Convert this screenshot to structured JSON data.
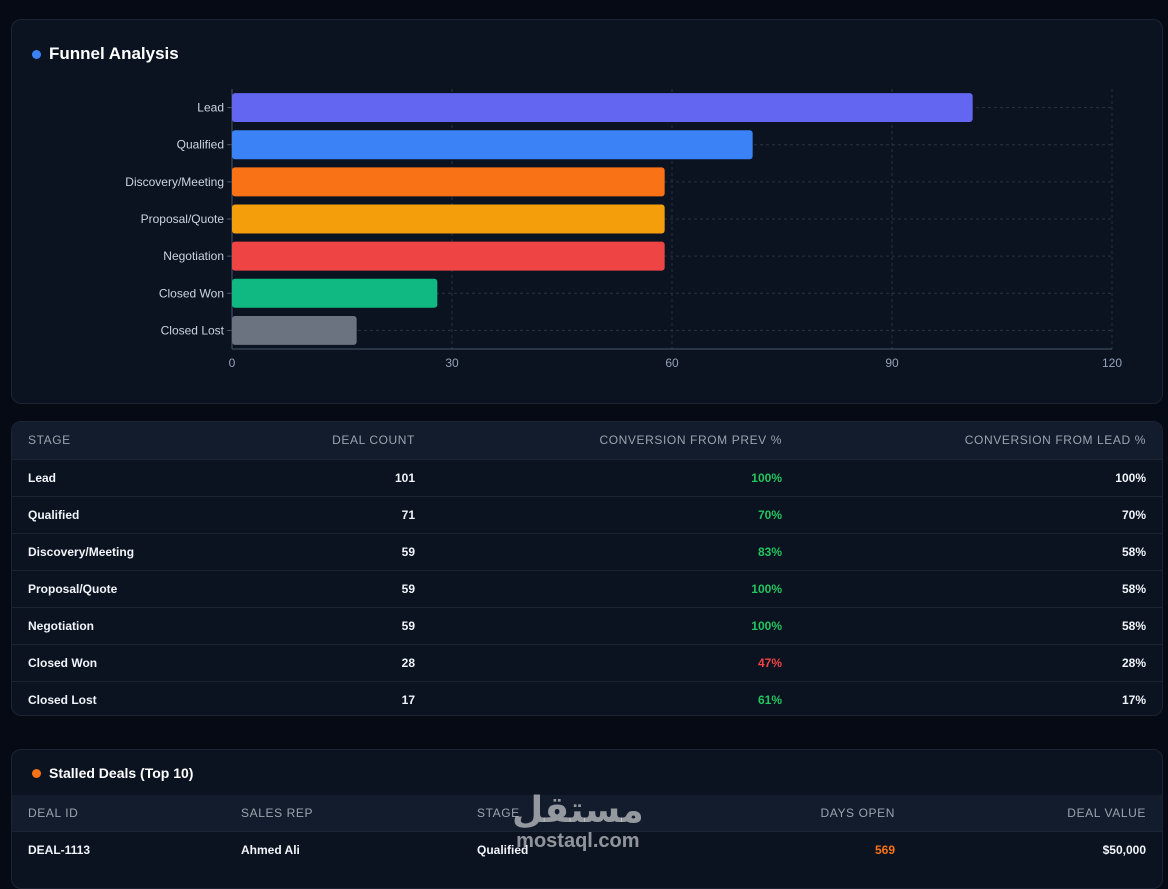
{
  "funnel": {
    "title": "Funnel Analysis",
    "accent": "#3b82f6"
  },
  "chart_data": {
    "type": "bar",
    "orientation": "horizontal",
    "categories": [
      "Lead",
      "Qualified",
      "Discovery/Meeting",
      "Proposal/Quote",
      "Negotiation",
      "Closed Won",
      "Closed Lost"
    ],
    "values": [
      101,
      71,
      59,
      59,
      59,
      28,
      17
    ],
    "colors": [
      "#6366f1",
      "#3b82f6",
      "#f97316",
      "#f59e0b",
      "#ef4444",
      "#10b981",
      "#6b7280"
    ],
    "xlim": [
      0,
      120
    ],
    "xticks": [
      0,
      30,
      60,
      90,
      120
    ],
    "grid": true,
    "title": "",
    "xlabel": "",
    "ylabel": ""
  },
  "stage_table": {
    "headers": [
      "STAGE",
      "DEAL COUNT",
      "CONVERSION FROM PREV %",
      "CONVERSION FROM LEAD %"
    ],
    "rows": [
      {
        "stage": "Lead",
        "count": "101",
        "prev": "100%",
        "prev_status": "good",
        "lead": "100%"
      },
      {
        "stage": "Qualified",
        "count": "71",
        "prev": "70%",
        "prev_status": "good",
        "lead": "70%"
      },
      {
        "stage": "Discovery/Meeting",
        "count": "59",
        "prev": "83%",
        "prev_status": "good",
        "lead": "58%"
      },
      {
        "stage": "Proposal/Quote",
        "count": "59",
        "prev": "100%",
        "prev_status": "good",
        "lead": "58%"
      },
      {
        "stage": "Negotiation",
        "count": "59",
        "prev": "100%",
        "prev_status": "good",
        "lead": "58%"
      },
      {
        "stage": "Closed Won",
        "count": "28",
        "prev": "47%",
        "prev_status": "bad",
        "lead": "28%"
      },
      {
        "stage": "Closed Lost",
        "count": "17",
        "prev": "61%",
        "prev_status": "good",
        "lead": "17%"
      }
    ]
  },
  "stalled": {
    "title": "Stalled Deals (Top 10)",
    "accent": "#f97316",
    "headers": [
      "DEAL ID",
      "SALES REP",
      "STAGE",
      "DAYS OPEN",
      "DEAL VALUE"
    ],
    "rows": [
      {
        "id": "DEAL-1113",
        "rep": "Ahmed Ali",
        "stage": "Qualified",
        "days": "569",
        "value": "$50,000"
      }
    ]
  },
  "watermark": {
    "arabic": "مستقل",
    "latin": "mostaql.com"
  }
}
